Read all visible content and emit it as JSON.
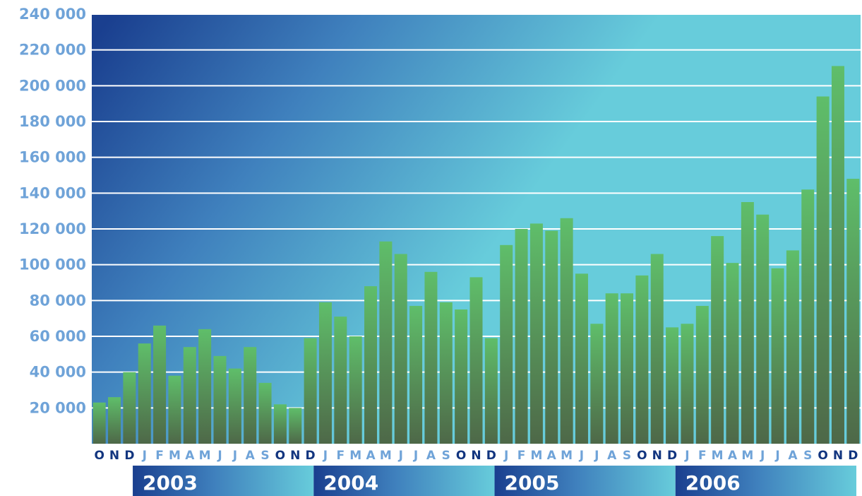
{
  "chart_data": {
    "type": "bar",
    "title": "",
    "xlabel": "",
    "ylabel": "",
    "ylim": [
      0,
      240000
    ],
    "yticks": [
      20000,
      40000,
      60000,
      80000,
      100000,
      120000,
      140000,
      160000,
      180000,
      200000,
      220000,
      240000
    ],
    "ytick_labels": [
      "20 000",
      "40 000",
      "60 000",
      "80 000",
      "100 000",
      "120 000",
      "140 000",
      "160 000",
      "180 000",
      "200 000",
      "220 000",
      "240 000"
    ],
    "categories": [
      "O",
      "N",
      "D",
      "J",
      "F",
      "M",
      "A",
      "M",
      "J",
      "J",
      "A",
      "S",
      "O",
      "N",
      "D",
      "J",
      "F",
      "M",
      "A",
      "M",
      "J",
      "J",
      "A",
      "S",
      "O",
      "N",
      "D",
      "J",
      "F",
      "M",
      "A",
      "M",
      "J",
      "J",
      "A",
      "S",
      "O",
      "N",
      "D",
      "J",
      "F",
      "M",
      "A",
      "M",
      "J",
      "J",
      "A",
      "S",
      "O",
      "N",
      "D"
    ],
    "values": [
      23000,
      26000,
      40000,
      56000,
      66000,
      38000,
      54000,
      64000,
      49000,
      42000,
      54000,
      34000,
      22000,
      20000,
      59000,
      79000,
      71000,
      60000,
      88000,
      113000,
      106000,
      77000,
      96000,
      79000,
      75000,
      93000,
      59000,
      111000,
      120000,
      123000,
      119000,
      126000,
      95000,
      67000,
      84000,
      84000,
      94000,
      106000,
      65000,
      67000,
      77000,
      116000,
      101000,
      135000,
      128000,
      98000,
      108000,
      142000,
      194000,
      211000,
      148000
    ],
    "years": [
      {
        "label": "2003",
        "start_index": 3
      },
      {
        "label": "2004",
        "start_index": 15
      },
      {
        "label": "2005",
        "start_index": 27
      },
      {
        "label": "2006",
        "start_index": 39
      }
    ],
    "grid": true,
    "legend": "none",
    "colors": {
      "background_dark": "#1a3f8f",
      "background_light": "#67ccdb",
      "bar_top": "#5fbe6a",
      "bar_bottom": "#4e6848",
      "tick_dark": "#12357f",
      "tick_light": "#6fa3d8",
      "gridline": "#ffffff"
    }
  }
}
